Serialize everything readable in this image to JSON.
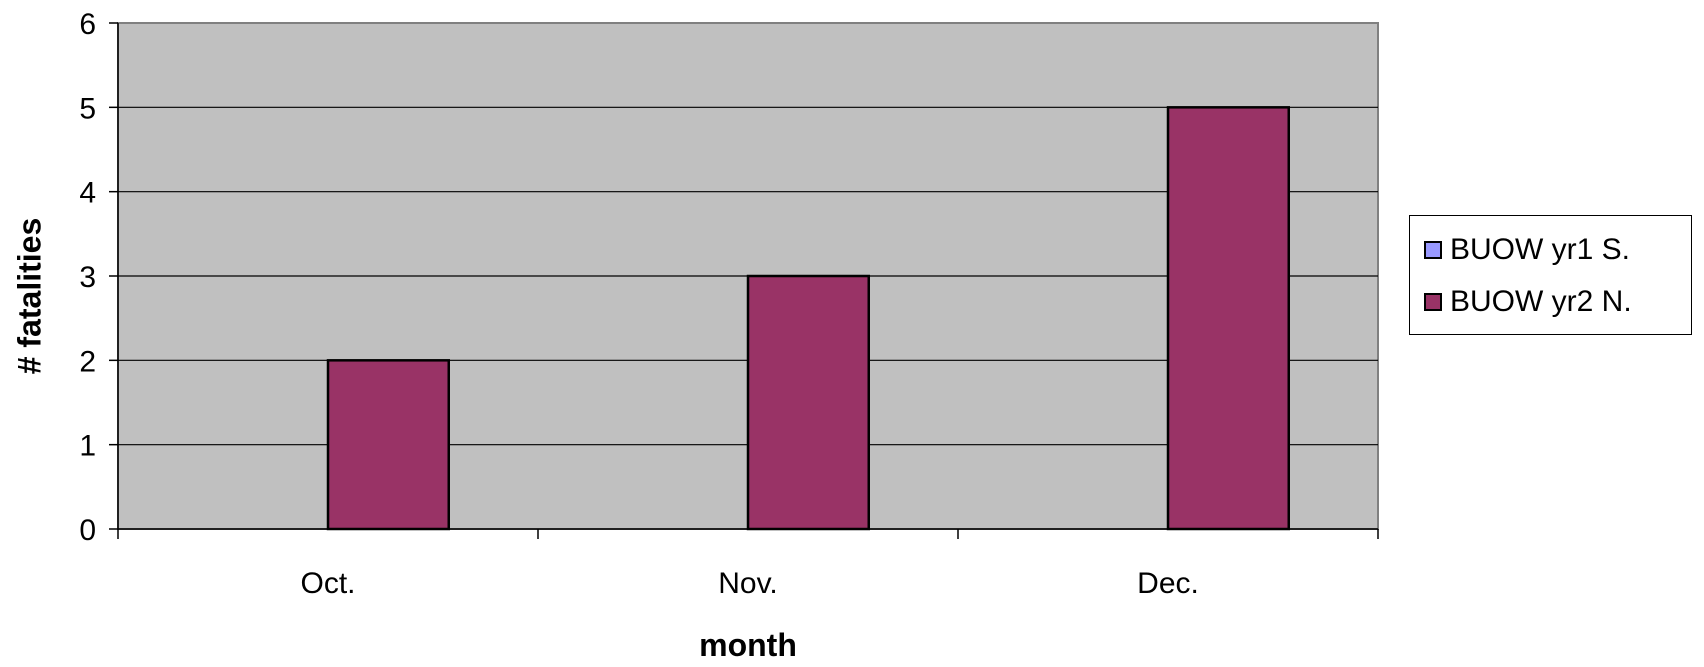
{
  "chart_data": {
    "type": "bar",
    "categories": [
      "Oct.",
      "Nov.",
      "Dec."
    ],
    "series": [
      {
        "name": "BUOW yr1 S.",
        "values": [
          0,
          0,
          0
        ],
        "color": "#9999FF"
      },
      {
        "name": "BUOW yr2 N.",
        "values": [
          2,
          3,
          5
        ],
        "color": "#993366"
      }
    ],
    "xlabel": "month",
    "ylabel": "# fatalities",
    "ylim": [
      0,
      6
    ],
    "yticks": [
      0,
      1,
      2,
      3,
      4,
      5,
      6
    ],
    "grid": true,
    "plot_background": "#C0C0C0",
    "legend_position": "right"
  }
}
